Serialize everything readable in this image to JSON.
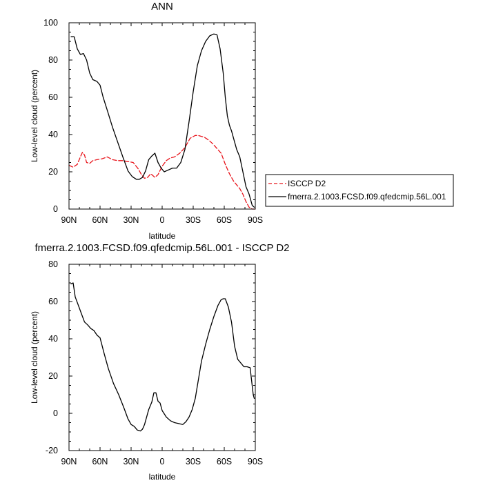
{
  "chart_data": [
    {
      "type": "line",
      "title": "ANN",
      "xlabel": "latitude",
      "ylabel": "Low-level cloud (percent)",
      "xlim": [
        90,
        -90
      ],
      "ylim": [
        0,
        100
      ],
      "x_ticks": [
        90,
        60,
        30,
        0,
        -30,
        -60,
        -90
      ],
      "x_tick_labels": [
        "90N",
        "60N",
        "30N",
        "0",
        "30S",
        "60S",
        "90S"
      ],
      "y_ticks": [
        0,
        20,
        40,
        60,
        80,
        100
      ],
      "y_tick_labels": [
        "0",
        "20",
        "40",
        "60",
        "80",
        "100"
      ],
      "legend_position": "right",
      "series": [
        {
          "name": "ISCCP D2",
          "color": "#e8141b",
          "dash": "dashed",
          "x": [
            90,
            86,
            82,
            79,
            77,
            75,
            73,
            70,
            67,
            63,
            58,
            53,
            48,
            43,
            38,
            33,
            28,
            23,
            20,
            17,
            14,
            11,
            7,
            4,
            0,
            -4,
            -8,
            -12,
            -17,
            -22,
            -27,
            -32,
            -35,
            -38,
            -41,
            -45,
            -49,
            -53,
            -57,
            -61,
            -65,
            -69,
            -72,
            -75,
            -78,
            -81,
            -84,
            -87,
            -90
          ],
          "y": [
            23.5,
            22.5,
            24,
            28,
            30.5,
            29,
            25,
            24.5,
            26,
            26.5,
            27,
            28,
            26.5,
            26,
            26,
            25.5,
            25,
            21.5,
            18.5,
            16.5,
            17,
            19,
            17,
            18.5,
            23,
            26,
            27.5,
            28,
            30,
            33,
            38,
            39.5,
            39.5,
            39,
            38.5,
            37,
            35,
            32.5,
            30,
            24,
            19,
            15,
            13,
            11,
            8,
            4,
            1,
            0,
            0
          ]
        },
        {
          "name": "fmerra.2.1003.FCSD.f09.qfedcmip.56L.001",
          "color": "#000000",
          "dash": "solid",
          "x": [
            88,
            85,
            82,
            79,
            76,
            73,
            70,
            67,
            63,
            60,
            57,
            53,
            48,
            43,
            38,
            33,
            29,
            25,
            22,
            19,
            16,
            13,
            10,
            7,
            4,
            1,
            -2,
            -6,
            -10,
            -14,
            -18,
            -22,
            -26,
            -30,
            -34,
            -38,
            -42,
            -46,
            -50,
            -53,
            -56,
            -59,
            -61,
            -63,
            -65,
            -67,
            -69,
            -72,
            -75,
            -78,
            -81,
            -84,
            -87,
            -89
          ],
          "y": [
            92.5,
            92.5,
            86,
            83,
            83.5,
            80,
            73,
            69.5,
            68.5,
            66.5,
            60,
            53,
            44,
            36,
            28,
            20.5,
            17.5,
            16,
            16,
            17,
            20.5,
            26.5,
            28.5,
            30,
            25,
            22,
            20,
            21,
            22,
            22,
            25,
            32,
            47,
            63,
            77,
            85,
            90,
            93,
            94,
            93.5,
            86,
            73,
            60,
            50,
            45,
            42,
            38,
            32,
            28,
            20,
            12,
            8,
            2,
            1
          ]
        }
      ]
    },
    {
      "type": "line",
      "title": "fmerra.2.1003.FCSD.f09.qfedcmip.56L.001 - ISCCP D2",
      "xlabel": "latitude",
      "ylabel": "Low-level cloud (percent)",
      "xlim": [
        90,
        -90
      ],
      "ylim": [
        -20,
        80
      ],
      "x_ticks": [
        90,
        60,
        30,
        0,
        -30,
        -60,
        -90
      ],
      "x_tick_labels": [
        "90N",
        "60N",
        "30N",
        "0",
        "30S",
        "60S",
        "90S"
      ],
      "y_ticks": [
        -20,
        0,
        20,
        40,
        60,
        80
      ],
      "y_tick_labels": [
        "-20",
        "0",
        "20",
        "40",
        "60",
        "80"
      ],
      "series": [
        {
          "color": "#000000",
          "dash": "solid",
          "x": [
            88,
            86,
            84,
            81,
            78,
            75,
            72,
            69,
            66,
            63,
            60,
            56,
            52,
            47,
            42,
            37,
            33,
            30,
            27,
            24,
            21,
            19,
            17,
            15,
            13,
            10,
            8,
            6,
            4,
            2,
            0,
            -4,
            -8,
            -12,
            -16,
            -20,
            -23,
            -26,
            -29,
            -32,
            -35,
            -38,
            -42,
            -46,
            -50,
            -54,
            -57,
            -59,
            -61,
            -64,
            -67,
            -70,
            -73,
            -76,
            -79,
            -82,
            -85,
            -88,
            -89
          ],
          "y": [
            69.5,
            70,
            62.5,
            58,
            53.5,
            49,
            47.5,
            45.5,
            44.5,
            42,
            40.5,
            32,
            24,
            16,
            10,
            3,
            -3,
            -6,
            -7,
            -9,
            -9.5,
            -8.5,
            -6,
            -2,
            2,
            6,
            11,
            11,
            6.5,
            5.5,
            1.5,
            -2,
            -4,
            -5,
            -5.5,
            -6,
            -4.5,
            -2,
            2,
            8,
            18,
            28,
            37,
            45,
            52,
            58,
            61,
            61.5,
            61.5,
            57,
            49,
            36,
            29,
            27,
            25,
            25,
            24.5,
            10,
            8
          ]
        }
      ]
    }
  ]
}
